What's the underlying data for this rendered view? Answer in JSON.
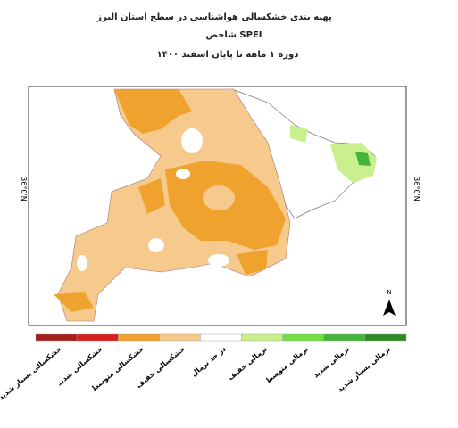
{
  "header": {
    "title": "پهنه بندی خشکسالی هواشناسی در سطح استان البرز",
    "subtitle": "شاخص SPEI",
    "period": "دوره ۱ ماهه تا پایان اسفند ۱۴۰۰"
  },
  "map": {
    "lat_label_left": "36°0'N",
    "lat_label_right": "36°0'N",
    "north": "N"
  },
  "legend": [
    {
      "label": "خشکسالی بسیار شدید",
      "color": "#a3201c"
    },
    {
      "label": "خشکسالی شدید",
      "color": "#d8201e"
    },
    {
      "label": "خشکسالی متوسط",
      "color": "#f0a22e"
    },
    {
      "label": "خشکسالی خفیف",
      "color": "#f6c98c"
    },
    {
      "label": "در حد نرمال",
      "color": "#ffffff"
    },
    {
      "label": "نرمالی خفیف",
      "color": "#c9ef8e"
    },
    {
      "label": "نرمالی متوسط",
      "color": "#72e045"
    },
    {
      "label": "نرمالی شدید",
      "color": "#44b53a"
    },
    {
      "label": "نرمالی بسیار شدید",
      "color": "#2f8a28"
    }
  ]
}
